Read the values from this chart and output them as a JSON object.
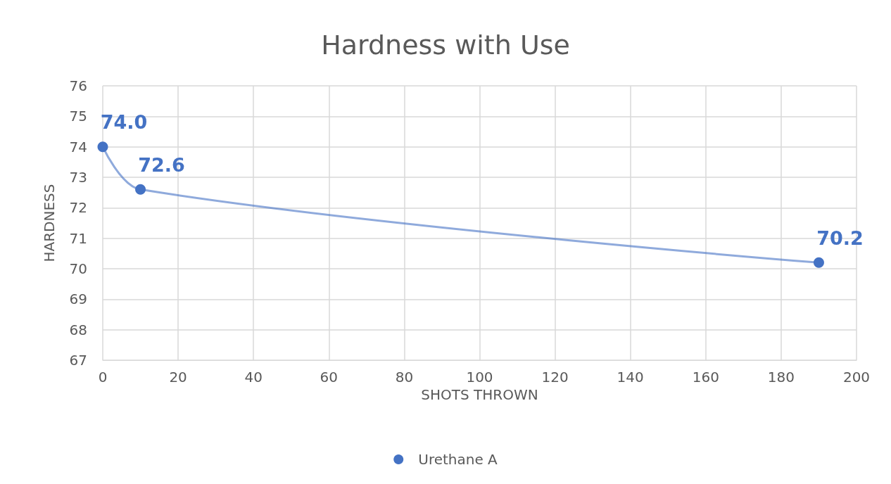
{
  "chart_data": {
    "type": "line",
    "title": "Hardness with Use",
    "xlabel": "SHOTS THROWN",
    "ylabel": "HARDNESS",
    "series": [
      {
        "name": "Urethane A",
        "color": "#4472c4",
        "x": [
          0,
          10,
          190
        ],
        "values": [
          74.0,
          72.6,
          70.2
        ],
        "value_labels": [
          "74.0",
          "72.6",
          "70.2"
        ]
      }
    ],
    "xlim": [
      0,
      200
    ],
    "xticks": [
      0,
      20,
      40,
      60,
      80,
      100,
      120,
      140,
      160,
      180,
      200
    ],
    "ylim": [
      67,
      76
    ],
    "yticks": [
      67,
      68,
      69,
      70,
      71,
      72,
      73,
      74,
      75,
      76
    ],
    "grid": true,
    "legend": "bottom",
    "marker": "circle",
    "line_style": "solid"
  }
}
